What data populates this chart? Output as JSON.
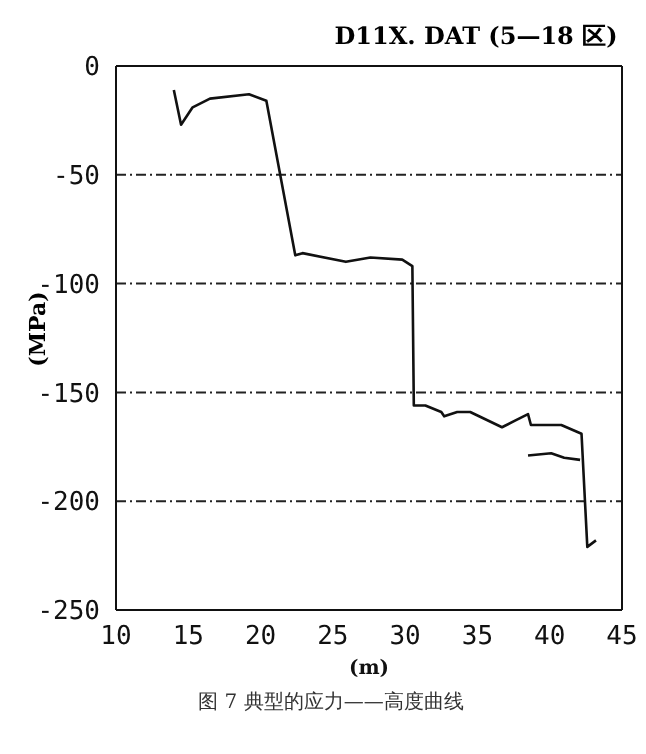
{
  "chart_data": {
    "type": "line",
    "title": "D11X. DAT (5—18 区)",
    "xlabel": "(m)",
    "ylabel": "(MPa)",
    "annotations": [
      "图 7 典型的应力——高度曲线"
    ],
    "xlim": [
      10,
      45
    ],
    "xticks": [
      10,
      15,
      20,
      25,
      30,
      35,
      40,
      45
    ],
    "ylim": [
      -250,
      0
    ],
    "yticks": [
      -250,
      -200,
      -150,
      -100,
      -50,
      0
    ],
    "grid": "y",
    "marker": "none",
    "line_style": "solid",
    "series": [
      {
        "color": "#111111",
        "x": [
          14.0,
          14.5,
          15.3,
          16.5,
          19.2,
          20.4,
          22.4,
          22.9,
          25.9,
          27.6,
          29.8,
          30.5,
          30.6,
          31.4,
          32.5,
          32.7,
          33.6,
          34.5,
          36.7,
          37.6,
          38.5,
          38.7,
          40.8,
          42.2,
          42.6,
          43.2
        ],
        "values": [
          -11,
          -27,
          -19,
          -15,
          -13,
          -16,
          -87,
          -86,
          -90,
          -88,
          -89,
          -92,
          -156,
          -156,
          -159,
          -161,
          -159,
          -159,
          -166,
          -163,
          -160,
          -165,
          -165,
          -169,
          -221,
          -218
        ]
      },
      {
        "color": "#111111",
        "x": [
          38.5,
          40.1,
          41.0,
          42.1
        ],
        "values": [
          -179,
          -178,
          -180,
          -181
        ]
      }
    ]
  }
}
